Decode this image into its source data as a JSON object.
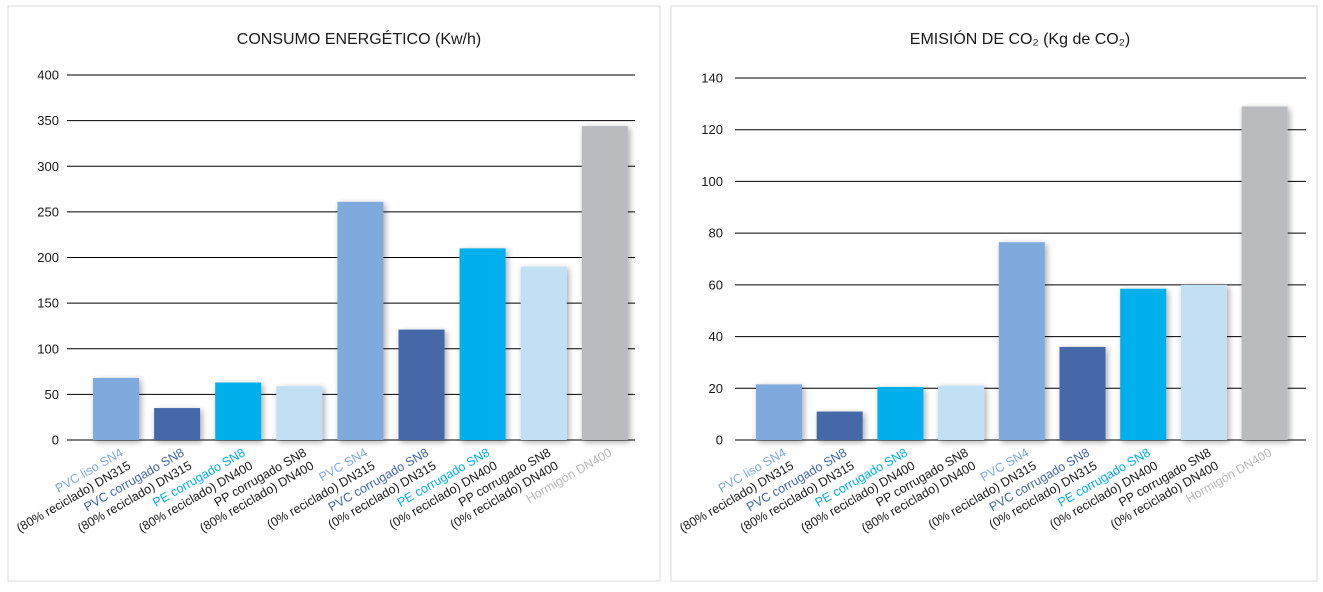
{
  "colors": {
    "light_blue": "#7faadd",
    "dark_blue": "#4468a8",
    "cyan": "#00b0ed",
    "pale_blue": "#c2e0f4",
    "grey": "#babbbf"
  },
  "chart_data": [
    {
      "type": "bar",
      "title": "CONSUMO ENERGÉTICO (Kw/h)",
      "xlabel": "",
      "ylabel": "",
      "ylim": [
        0,
        400
      ],
      "yticks": [
        0,
        50,
        100,
        150,
        200,
        250,
        300,
        350,
        400
      ],
      "grid": true,
      "categories": [
        {
          "line1": "PVC liso SN4",
          "line2": "(80% reciclado) DN315"
        },
        {
          "line1": "PVC corrugado SN8",
          "line2": "(80% reciclado) DN315"
        },
        {
          "line1": "PE corrugado SN8",
          "line2": "(80% reciclado) DN400"
        },
        {
          "line1": "PP corrugado SN8",
          "line2": "(80% reciclado) DN400"
        },
        {
          "line1": "PVC SN4",
          "line2": "(0% reciclado) DN315"
        },
        {
          "line1": "PVC corrugado SN8",
          "line2": "(0% reciclado) DN315"
        },
        {
          "line1": "PE corrugado SN8",
          "line2": "(0% reciclado) DN400"
        },
        {
          "line1": "PP corrugado SN8",
          "line2": "(0% reciclado) DN400"
        },
        {
          "line1": "Hormigón DN400",
          "line2": ""
        }
      ],
      "values": [
        68,
        35,
        63,
        59,
        261,
        121,
        210,
        190,
        344
      ],
      "bar_colors": [
        "light_blue",
        "dark_blue",
        "cyan",
        "pale_blue",
        "light_blue",
        "dark_blue",
        "cyan",
        "pale_blue",
        "grey"
      ],
      "label_line1_colors": [
        "light_blue",
        "dark_blue",
        "cyan",
        "black",
        "light_blue",
        "dark_blue",
        "cyan",
        "black",
        "grey"
      ]
    },
    {
      "type": "bar",
      "title": "EMISIÓN DE CO₂ (Kg de CO₂)",
      "xlabel": "",
      "ylabel": "",
      "ylim": [
        0,
        140
      ],
      "yticks": [
        0,
        20,
        40,
        60,
        80,
        100,
        120,
        140
      ],
      "grid": true,
      "categories": [
        {
          "line1": "PVC liso SN4",
          "line2": "(80% reciclado) DN315"
        },
        {
          "line1": "PVC corrugado SN8",
          "line2": "(80% reciclado) DN315"
        },
        {
          "line1": "PE corrugado SN8",
          "line2": "(80% reciclado) DN400"
        },
        {
          "line1": "PP corrugado SN8",
          "line2": "(80% reciclado) DN400"
        },
        {
          "line1": "PVC SN4",
          "line2": "(0% reciclado) DN315"
        },
        {
          "line1": "PVC corrugado SN8",
          "line2": "(0% reciclado) DN315"
        },
        {
          "line1": "PE corrugado SN8",
          "line2": "(0% reciclado) DN400"
        },
        {
          "line1": "PP corrugado SN8",
          "line2": "(0% reciclado) DN400"
        },
        {
          "line1": "Hormigón DN400",
          "line2": ""
        }
      ],
      "values": [
        21.5,
        11,
        20.5,
        21,
        76.5,
        36,
        58.5,
        60,
        129
      ],
      "bar_colors": [
        "light_blue",
        "dark_blue",
        "cyan",
        "pale_blue",
        "light_blue",
        "dark_blue",
        "cyan",
        "pale_blue",
        "grey"
      ],
      "label_line1_colors": [
        "light_blue",
        "dark_blue",
        "cyan",
        "black",
        "light_blue",
        "dark_blue",
        "cyan",
        "black",
        "grey"
      ]
    }
  ]
}
